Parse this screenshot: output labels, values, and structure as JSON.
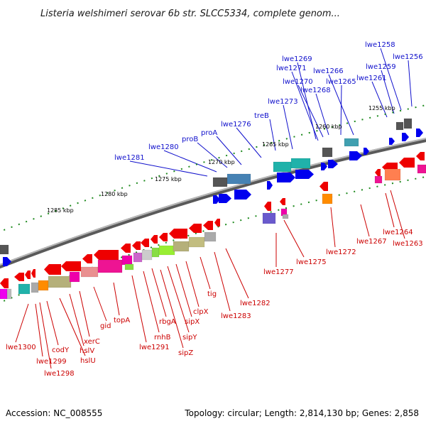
{
  "title": "Listeria welshimeri serovar 6b str. SLCC5334, complete genom...",
  "footer": {
    "accession": "Accession: NC_008555",
    "summary": "Topology: circular; Length: 2,814,130 bp; Genes: 2,858"
  },
  "colors": {
    "forward_label": "#1010cc",
    "reverse_label": "#cc0000",
    "backbone": "#808080"
  },
  "ticks": [
    "1255 kbp",
    "1260 kbp",
    "1265 kbp",
    "1270 kbp",
    "1275 kbp",
    "1280 kbp",
    "1285 kbp"
  ],
  "forward_labels": [
    "lwe1258",
    "lwe1256",
    "lwe1269",
    "lwe1271",
    "lwe1266",
    "lwe1259",
    "lwe1261",
    "lwe1270",
    "lwe1265",
    "lwe1268",
    "lwe1273",
    "treB",
    "lwe1276",
    "proA",
    "proB",
    "lwe1280",
    "lwe1281"
  ],
  "reverse_labels": [
    "lwe1264",
    "lwe1263",
    "lwe1267",
    "lwe1272",
    "lwe1275",
    "lwe1277",
    "lwe1282",
    "lwe1283",
    "tig",
    "clpX",
    "sipX",
    "sipY",
    "rbgA",
    "sipZ",
    "rnhB",
    "lwe1291",
    "topA",
    "gid",
    "xerC",
    "hslV",
    "hslU",
    "codY",
    "lwe1299",
    "lwe1298",
    "lwe1300"
  ]
}
